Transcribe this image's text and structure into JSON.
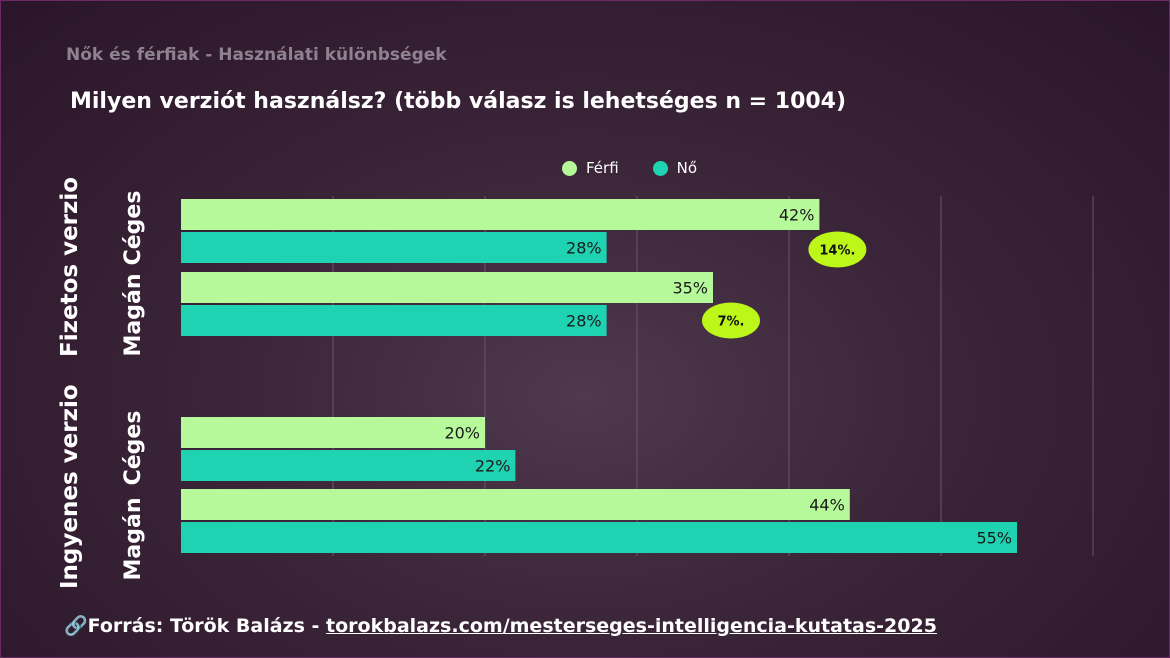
{
  "subtitle": "Nők és férfiak - Használati különbségek",
  "title": "Milyen verziót használsz? (több válasz is lehetséges n = 1004)",
  "legend": [
    {
      "label": "Férfi",
      "color": "#b6f99a"
    },
    {
      "label": "Nő",
      "color": "#1fd2b2"
    }
  ],
  "groups": [
    {
      "label": "Fizetos verzio",
      "subgroups": [
        "Céges",
        "Magán"
      ]
    },
    {
      "label": "Ingyenes verzio",
      "subgroups": [
        "Céges",
        "Magán"
      ]
    }
  ],
  "chart_data": {
    "type": "bar",
    "orientation": "horizontal",
    "categories": [
      "Fizetos verzio - Céges",
      "Fizetos verzio - Magán",
      "Ingyenes verzio - Céges",
      "Ingyenes verzio - Magán"
    ],
    "series": [
      {
        "name": "Férfi",
        "values": [
          42,
          35,
          20,
          44
        ],
        "labels": [
          "42%",
          "35%",
          "20%",
          "44%"
        ]
      },
      {
        "name": "Nő",
        "values": [
          28,
          28,
          22,
          55
        ],
        "labels": [
          "28%",
          "28%",
          "22%",
          "55%"
        ]
      }
    ],
    "xlim": [
      0,
      60
    ],
    "grid": true,
    "legend_position": "top-center",
    "annotations": [
      {
        "text": "14%.",
        "category": "Fizetos verzio - Céges"
      },
      {
        "text": "7%.",
        "category": "Fizetos verzio - Magán"
      }
    ]
  },
  "colors": {
    "badge": "#bdf71a",
    "gridline": "#6b5668"
  },
  "source": {
    "icon": "link-icon",
    "prefix": "Forrás: Török Balázs - ",
    "link": "torokbalazs.com/mesterseges-intelligencia-kutatas-2025"
  }
}
